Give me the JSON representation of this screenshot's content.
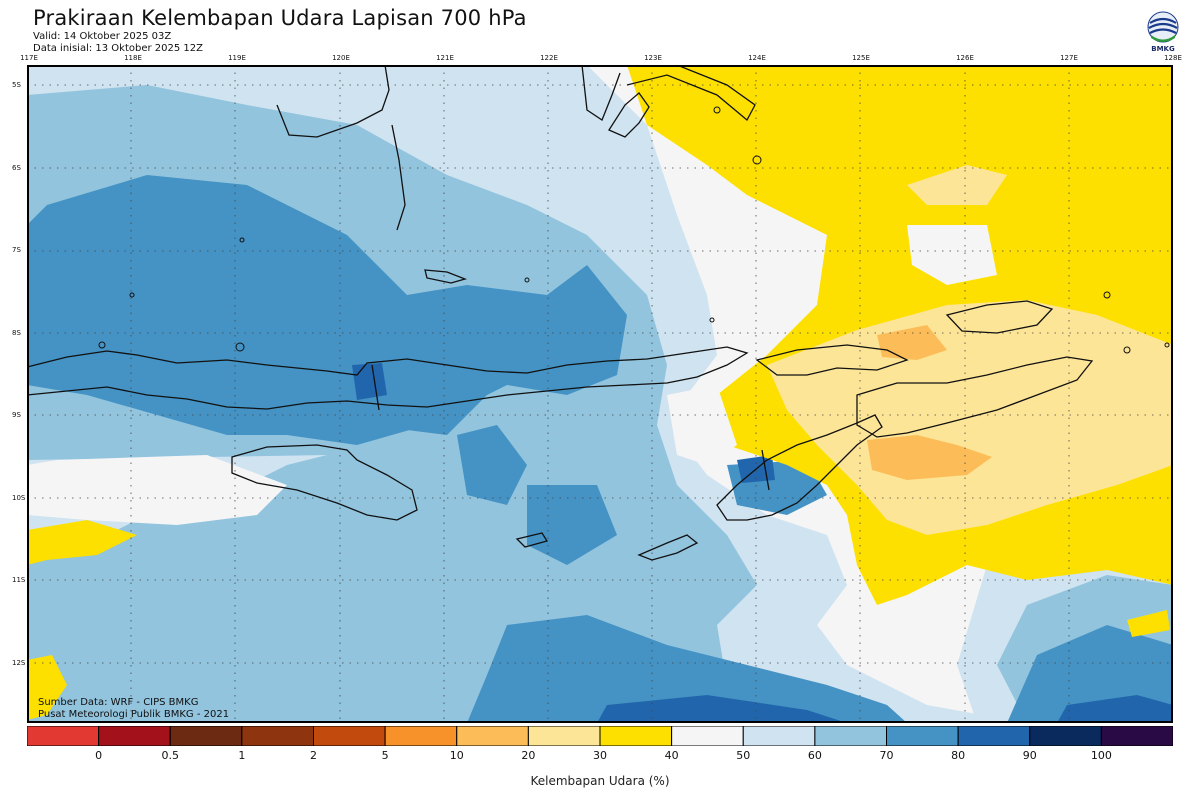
{
  "header": {
    "title": "Prakiraan Kelembapan Udara Lapisan 700 hPa",
    "valid": "Valid: 14 Oktober 2025 03Z",
    "init": "Data inisial: 13 Oktober 2025 12Z"
  },
  "logo": {
    "label": "BMKG",
    "icon": "bmkg-logo-icon"
  },
  "axes": {
    "lon_labels": [
      "117E",
      "118E",
      "119E",
      "120E",
      "121E",
      "122E",
      "123E",
      "124E",
      "125E",
      "126E",
      "127E",
      "128E"
    ],
    "lat_labels": [
      "5S",
      "6S",
      "7S",
      "8S",
      "9S",
      "10S",
      "11S",
      "12S"
    ]
  },
  "credits": {
    "source": "Sumber Data: WRF - CIPS BMKG",
    "publisher": "Pusat Meteorologi Publik BMKG - 2021"
  },
  "colorbar": {
    "title": "Kelembapan Udara (%)",
    "labels": [
      "0",
      "0.5",
      "1",
      "2",
      "5",
      "10",
      "20",
      "30",
      "40",
      "50",
      "60",
      "70",
      "80",
      "90",
      "100"
    ],
    "colors": [
      "#e23a33",
      "#a3111a",
      "#6b2a11",
      "#8e3510",
      "#c24a0c",
      "#f7922a",
      "#fcbd58",
      "#fde597",
      "#fde000",
      "#f5f5f5",
      "#d0e3f0",
      "#92c4de",
      "#4493c4",
      "#2166ac",
      "#0a2a5e",
      "#2a0a45"
    ]
  },
  "map_colors": {
    "background": "#f5f5f5",
    "yellow": "#fde000",
    "light_orange": "#fde597",
    "orange": "#fcbd58",
    "blue1": "#d0e3f0",
    "blue2": "#92c4de",
    "blue3": "#4493c4",
    "blue4": "#2166ac",
    "coast": "#111111"
  }
}
